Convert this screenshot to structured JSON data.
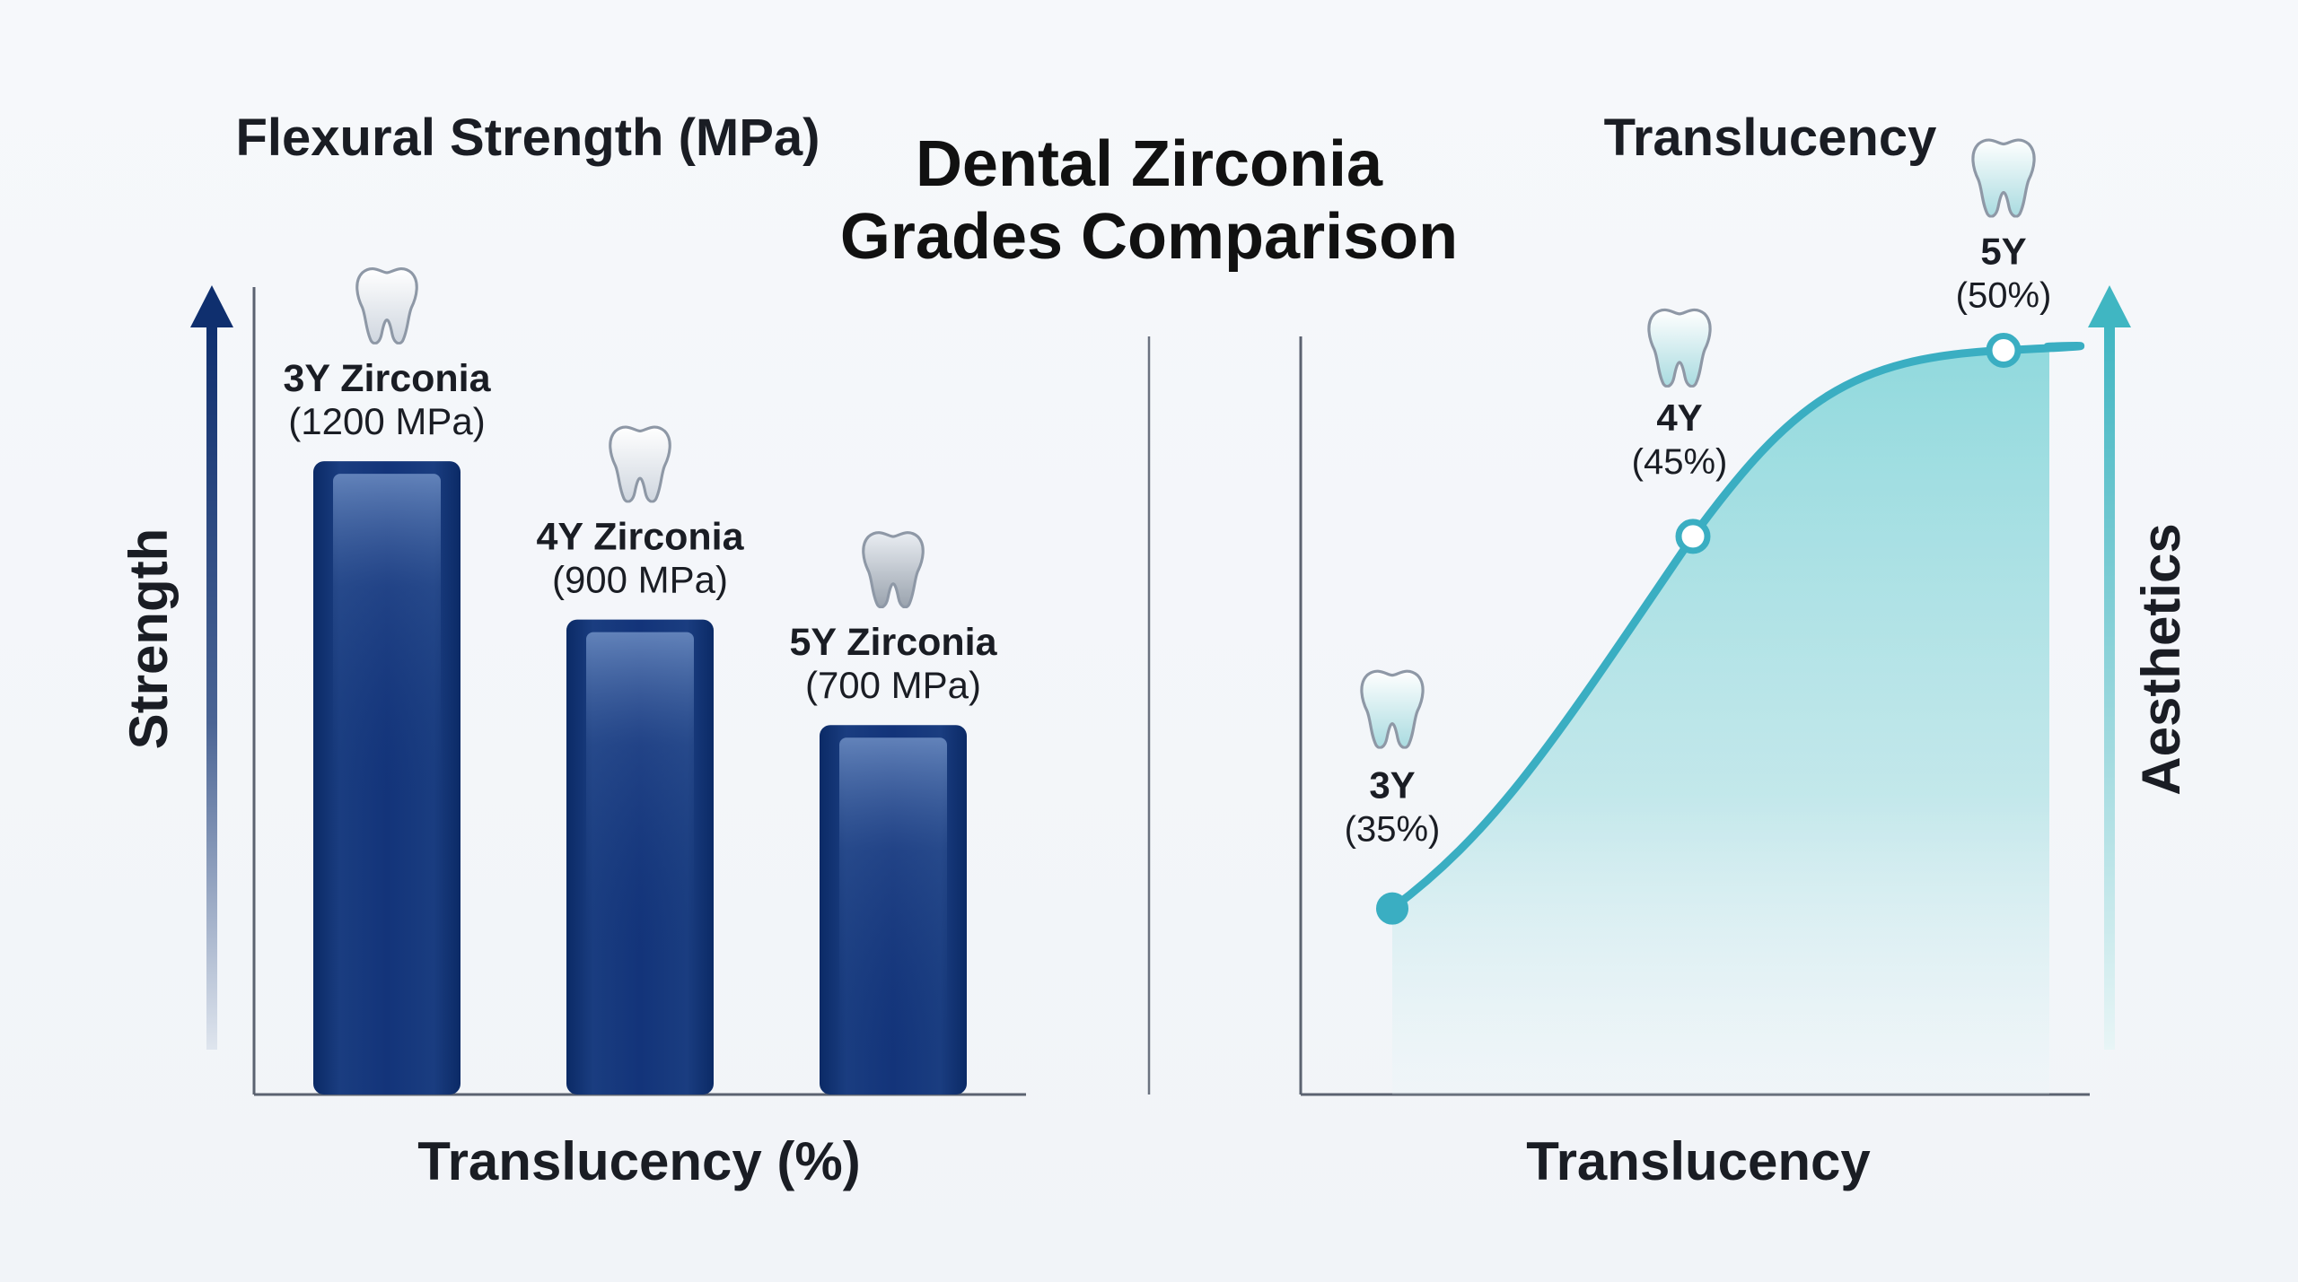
{
  "main_title": [
    "Dental Zirconia",
    "Grades Comparison"
  ],
  "colors": {
    "bar": "#0f2f6e",
    "bar_highlight": "#4a6ea8",
    "strength_arrow": "#0f2f6e",
    "curve": "#3aaec2",
    "area_fill": "#7fd4d8",
    "aesthetics_arrow": "#40b6c2",
    "axis": "#5b6270"
  },
  "icons": {
    "bar_marker": "tooth-icon",
    "curve_marker": "tooth-icon"
  },
  "chart_data": [
    {
      "type": "bar",
      "title": "Flexural Strength (MPa)",
      "xlabel": "Translucency (%)",
      "ylabel": "Strength",
      "categories": [
        "3Y Zirconia",
        "4Y Zirconia",
        "5Y Zirconia"
      ],
      "values": [
        1200,
        900,
        700
      ],
      "value_labels": [
        "(1200 MPa)",
        "(900 MPa)",
        "(700 MPa)"
      ],
      "ylim": [
        0,
        1530
      ],
      "grid": false,
      "legend": "none"
    },
    {
      "type": "line",
      "title": "Translucency",
      "xlabel": "Translucency",
      "ylabel": "Aesthetics",
      "categories": [
        "3Y",
        "4Y",
        "5Y"
      ],
      "values": [
        35,
        45,
        50
      ],
      "value_labels": [
        "(35%)",
        "(45%)",
        "(50%)"
      ],
      "ylim": [
        30,
        51.7
      ],
      "area_fill": true,
      "grid": false,
      "legend": "none"
    }
  ]
}
